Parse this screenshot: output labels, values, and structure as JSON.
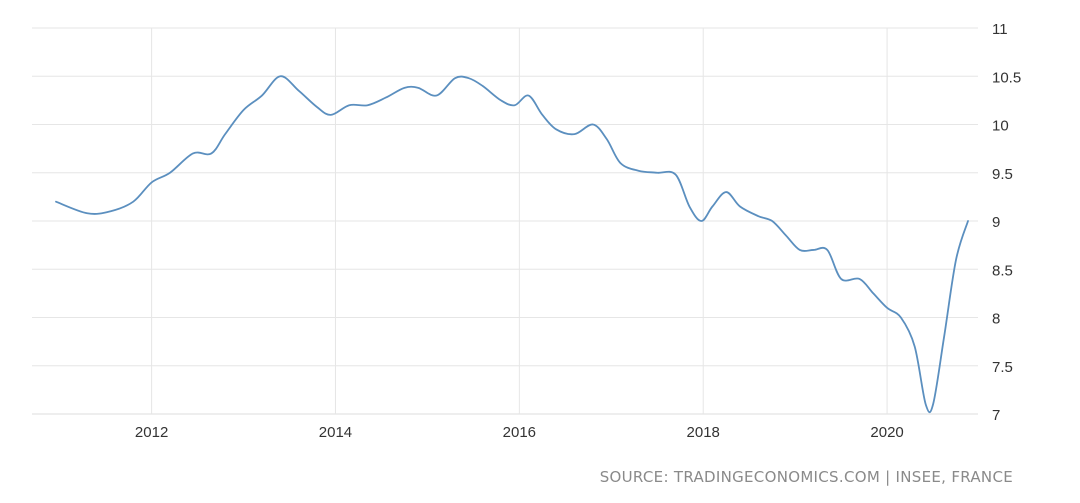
{
  "chart_data": {
    "type": "line",
    "title": "",
    "xlabel": "",
    "ylabel": "",
    "x_tick_labels": [
      "2012",
      "2014",
      "2016",
      "2018",
      "2020"
    ],
    "y_tick_labels": [
      "11",
      "10.5",
      "10",
      "9.5",
      "9",
      "8.5",
      "8",
      "7.5",
      "7"
    ],
    "xlim": [
      2010.96,
      2020.88
    ],
    "ylim": [
      7,
      11
    ],
    "grid": true,
    "series": [
      {
        "color": "#5b8fbf",
        "x": [
          2010.96,
          2011.3,
          2011.55,
          2011.8,
          2012.0,
          2012.2,
          2012.45,
          2012.65,
          2012.8,
          2013.0,
          2013.2,
          2013.4,
          2013.6,
          2013.8,
          2013.95,
          2014.15,
          2014.35,
          2014.55,
          2014.75,
          2014.9,
          2015.1,
          2015.3,
          2015.45,
          2015.6,
          2015.8,
          2015.95,
          2016.1,
          2016.25,
          2016.4,
          2016.6,
          2016.8,
          2016.95,
          2017.1,
          2017.3,
          2017.5,
          2017.7,
          2017.85,
          2017.98,
          2018.1,
          2018.25,
          2018.4,
          2018.6,
          2018.75,
          2018.9,
          2019.05,
          2019.2,
          2019.35,
          2019.5,
          2019.7,
          2019.85,
          2020.0,
          2020.15,
          2020.3,
          2020.42,
          2020.5,
          2020.62,
          2020.75,
          2020.88
        ],
        "y": [
          9.2,
          9.08,
          9.1,
          9.2,
          9.4,
          9.5,
          9.7,
          9.7,
          9.9,
          10.15,
          10.3,
          10.5,
          10.35,
          10.18,
          10.1,
          10.2,
          10.2,
          10.28,
          10.38,
          10.38,
          10.3,
          10.48,
          10.48,
          10.4,
          10.25,
          10.2,
          10.3,
          10.1,
          9.95,
          9.9,
          10.0,
          9.85,
          9.6,
          9.52,
          9.5,
          9.48,
          9.15,
          9.0,
          9.15,
          9.3,
          9.15,
          9.05,
          9.0,
          8.85,
          8.7,
          8.7,
          8.7,
          8.4,
          8.4,
          8.25,
          8.1,
          8.0,
          7.7,
          7.1,
          7.1,
          7.8,
          8.6,
          9.0
        ]
      }
    ]
  },
  "source": "SOURCE: TRADINGECONOMICS.COM | INSEE, FRANCE"
}
